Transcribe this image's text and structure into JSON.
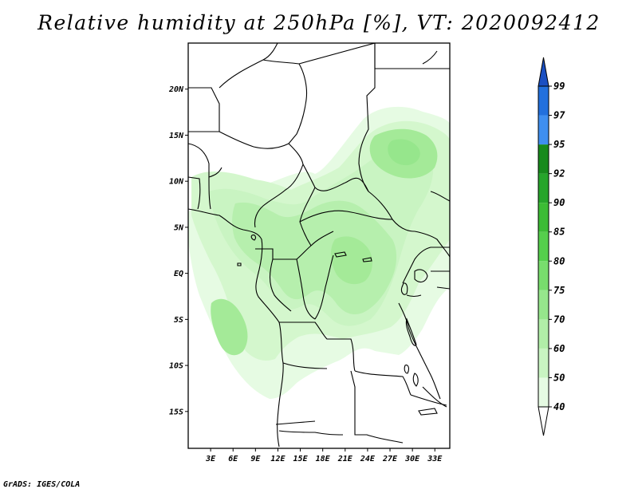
{
  "title": "Relative humidity at 250hPa [%], VT: 2020092412",
  "credit": "GrADS: IGES/COLA",
  "map": {
    "lon_range": [
      0,
      35
    ],
    "lat_range": [
      -19,
      25
    ],
    "lat_ticks": [
      {
        "label": "20N",
        "lat": 20
      },
      {
        "label": "15N",
        "lat": 15
      },
      {
        "label": "10N",
        "lat": 10
      },
      {
        "label": "5N",
        "lat": 5
      },
      {
        "label": "EQ",
        "lat": 0
      },
      {
        "label": "5S",
        "lat": -5
      },
      {
        "label": "10S",
        "lat": -10
      },
      {
        "label": "15S",
        "lat": -15
      }
    ],
    "lon_ticks": [
      {
        "label": "3E",
        "lon": 3
      },
      {
        "label": "6E",
        "lon": 6
      },
      {
        "label": "9E",
        "lon": 9
      },
      {
        "label": "12E",
        "lon": 12
      },
      {
        "label": "15E",
        "lon": 15
      },
      {
        "label": "18E",
        "lon": 18
      },
      {
        "label": "21E",
        "lon": 21
      },
      {
        "label": "24E",
        "lon": 24
      },
      {
        "label": "27E",
        "lon": 27
      },
      {
        "label": "30E",
        "lon": 30
      },
      {
        "label": "33E",
        "lon": 33
      }
    ]
  },
  "colorbar": {
    "colors": [
      "#ffffff",
      "#e6fbe3",
      "#c9f4c2",
      "#b1eea8",
      "#96e68c",
      "#78dd6d",
      "#55cf4c",
      "#3cbc35",
      "#26a52b",
      "#178a1c",
      "#3f8ff0",
      "#2270dd",
      "#1a4fc2"
    ],
    "labels": [
      "40",
      "50",
      "60",
      "70",
      "75",
      "80",
      "85",
      "90",
      "92",
      "95",
      "97",
      "99"
    ]
  }
}
